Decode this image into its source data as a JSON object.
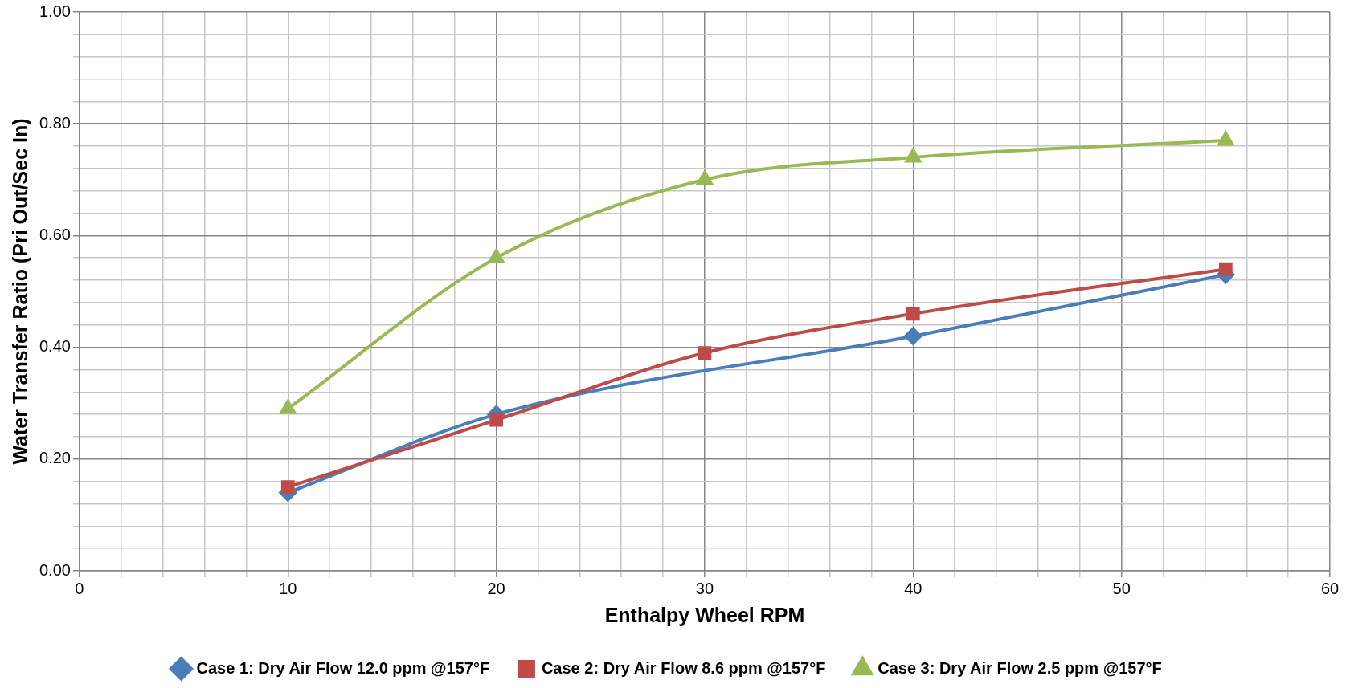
{
  "chart_data": {
    "type": "line",
    "xlabel": "Enthalpy Wheel RPM",
    "ylabel": "Water Transfer Ratio (Pri Out/Sec In)",
    "xlim": [
      0,
      60
    ],
    "xticks": [
      0,
      {
        "value": 2,
        "label": null
      },
      {
        "value": 4,
        "label": null
      },
      {
        "value": 6,
        "label": null
      },
      {
        "value": 8,
        "label": null
      },
      10,
      {
        "value": 12,
        "label": null
      },
      {
        "value": 14,
        "label": null
      },
      {
        "value": 16,
        "label": null
      },
      {
        "value": 18,
        "label": null
      },
      20,
      {
        "value": 22,
        "label": null
      },
      {
        "value": 24,
        "label": null
      },
      {
        "value": 26,
        "label": null
      },
      {
        "value": 28,
        "label": null
      },
      30,
      {
        "value": 32,
        "label": null
      },
      {
        "value": 34,
        "label": null
      },
      {
        "value": 36,
        "label": null
      },
      {
        "value": 38,
        "label": null
      },
      40,
      {
        "value": 42,
        "label": null
      },
      {
        "value": 44,
        "label": null
      },
      {
        "value": 46,
        "label": null
      },
      {
        "value": 48,
        "label": null
      },
      50,
      {
        "value": 52,
        "label": null
      },
      {
        "value": 54,
        "label": null
      },
      {
        "value": 56,
        "label": null
      },
      {
        "value": 58,
        "label": null
      },
      60
    ],
    "ylim": [
      0,
      1
    ],
    "yticks": [
      {
        "value": 0,
        "label": "0.00"
      },
      {
        "value": 0.04,
        "label": null
      },
      {
        "value": 0.08,
        "label": null
      },
      {
        "value": 0.12,
        "label": null
      },
      {
        "value": 0.16,
        "label": null
      },
      {
        "value": 0.2,
        "label": "0.20"
      },
      {
        "value": 0.24,
        "label": null
      },
      {
        "value": 0.28,
        "label": null
      },
      {
        "value": 0.32,
        "label": null
      },
      {
        "value": 0.36,
        "label": null
      },
      {
        "value": 0.4,
        "label": "0.40"
      },
      {
        "value": 0.44,
        "label": null
      },
      {
        "value": 0.48,
        "label": null
      },
      {
        "value": 0.52,
        "label": null
      },
      {
        "value": 0.56,
        "label": null
      },
      {
        "value": 0.6,
        "label": "0.60"
      },
      {
        "value": 0.64,
        "label": null
      },
      {
        "value": 0.68,
        "label": null
      },
      {
        "value": 0.72,
        "label": null
      },
      {
        "value": 0.76,
        "label": null
      },
      {
        "value": 0.8,
        "label": "0.80"
      },
      {
        "value": 0.84,
        "label": null
      },
      {
        "value": 0.88,
        "label": null
      },
      {
        "value": 0.92,
        "label": null
      },
      {
        "value": 0.96,
        "label": null
      },
      {
        "value": 1,
        "label": "1.00"
      }
    ],
    "grid": true,
    "legend": "bottom",
    "line_style": "solid",
    "series": [
      {
        "name": "Case 1: Dry Air Flow 12.0 ppm @157°F",
        "color": "#4a7ebb",
        "marker": "diamond",
        "x": [
          10,
          20,
          40,
          55
        ],
        "values": [
          0.14,
          0.28,
          0.42,
          0.53
        ]
      },
      {
        "name": "Case 2: Dry Air Flow 8.6 ppm @157°F",
        "color": "#be4b48",
        "marker": "square",
        "x": [
          10,
          20,
          30,
          40,
          55
        ],
        "values": [
          0.15,
          0.27,
          0.39,
          0.46,
          0.54
        ]
      },
      {
        "name": "Case 3: Dry Air Flow 2.5 ppm @157°F",
        "color": "#98b954",
        "marker": "triangle",
        "x": [
          10,
          20,
          30,
          40,
          55
        ],
        "values": [
          0.29,
          0.56,
          0.7,
          0.74,
          0.77
        ]
      }
    ]
  }
}
